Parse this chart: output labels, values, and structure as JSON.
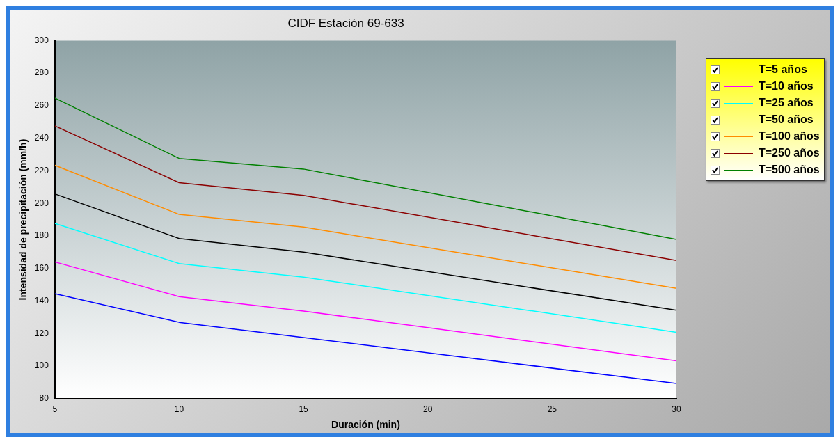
{
  "chart_data": {
    "type": "line",
    "title": "CIDF Estación 69-633",
    "xlabel": "Duración (min)",
    "ylabel": "Intensidad de precipitación (mm/h)",
    "x": [
      5,
      10,
      15,
      30
    ],
    "xlim": [
      5,
      30
    ],
    "xticks": [
      5,
      10,
      15,
      20,
      25,
      30
    ],
    "ylim": [
      80,
      300
    ],
    "yticks": [
      80,
      100,
      120,
      140,
      160,
      180,
      200,
      220,
      240,
      260,
      280,
      300
    ],
    "grid": false,
    "legend": "top right",
    "marker": "none",
    "line_style": "solid",
    "series": [
      {
        "name": "T=5 años",
        "color": "#0000ff",
        "values": [
          144.5,
          126.9,
          117.6,
          89.3
        ]
      },
      {
        "name": "T=10 años",
        "color": "#ff00ff",
        "values": [
          164,
          142.7,
          133.8,
          103.2
        ]
      },
      {
        "name": "T=25 años",
        "color": "#00ffff",
        "values": [
          187.7,
          163,
          154.7,
          120.8
        ]
      },
      {
        "name": "T=50 años",
        "color": "#000000",
        "values": [
          205.8,
          178.4,
          170,
          134.3
        ]
      },
      {
        "name": "T=100 años",
        "color": "#ff8c00",
        "values": [
          223.4,
          193.2,
          185.4,
          147.8
        ]
      },
      {
        "name": "T=250 años",
        "color": "#8b0000",
        "values": [
          247.6,
          212.7,
          204.9,
          164.9
        ]
      },
      {
        "name": "T=500 años",
        "color": "#008000",
        "values": [
          264.7,
          227.6,
          221.1,
          177.9
        ]
      }
    ]
  }
}
